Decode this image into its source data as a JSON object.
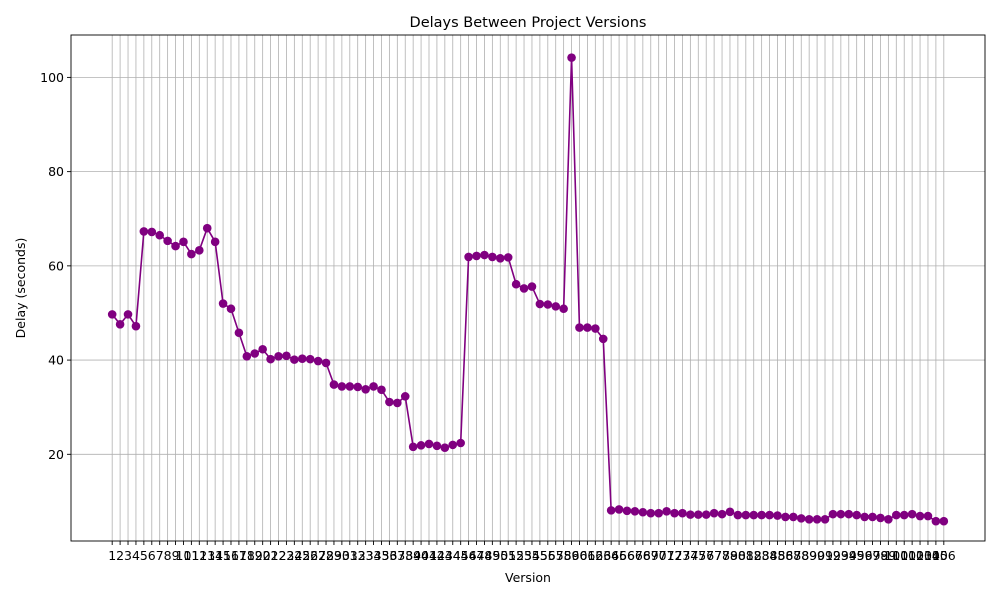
{
  "chart_data": {
    "type": "line",
    "title": "Delays Between Project Versions",
    "xlabel": "Version",
    "ylabel": "Delay (seconds)",
    "x": [
      1,
      2,
      3,
      4,
      5,
      6,
      7,
      8,
      9,
      10,
      11,
      12,
      13,
      14,
      15,
      16,
      17,
      18,
      19,
      20,
      21,
      22,
      23,
      24,
      25,
      26,
      27,
      28,
      29,
      30,
      31,
      32,
      33,
      34,
      35,
      36,
      37,
      38,
      39,
      40,
      41,
      42,
      43,
      44,
      45,
      46,
      47,
      48,
      49,
      50,
      51,
      52,
      53,
      54,
      55,
      56,
      57,
      58,
      59,
      60,
      61,
      62,
      63,
      64,
      65,
      66,
      67,
      68,
      69,
      70,
      71,
      72,
      73,
      74,
      75,
      76,
      77,
      78,
      79,
      80,
      81,
      82,
      83,
      84,
      85,
      86,
      87,
      88,
      89,
      90,
      91,
      92,
      93,
      94,
      95,
      96,
      97,
      98,
      99,
      100,
      101,
      102,
      103,
      104,
      105,
      106
    ],
    "series": [
      {
        "color": "#800080",
        "values": [
          49.7,
          47.6,
          49.7,
          47.2,
          67.3,
          67.2,
          66.5,
          65.3,
          64.2,
          65.1,
          62.5,
          63.3,
          68.0,
          65.1,
          52.0,
          50.9,
          45.8,
          40.8,
          41.4,
          42.3,
          40.2,
          40.8,
          40.9,
          40.1,
          40.3,
          40.2,
          39.8,
          39.4,
          34.8,
          34.4,
          34.4,
          34.3,
          33.8,
          34.4,
          33.7,
          31.1,
          30.9,
          32.3,
          21.6,
          21.9,
          22.2,
          21.8,
          21.4,
          22.0,
          22.4,
          61.9,
          62.1,
          62.3,
          61.9,
          61.6,
          61.8,
          56.1,
          55.2,
          55.6,
          51.9,
          51.8,
          51.4,
          50.9,
          104.2,
          46.9,
          46.9,
          46.7,
          44.5,
          8.1,
          8.3,
          8.0,
          7.9,
          7.7,
          7.5,
          7.5,
          7.9,
          7.5,
          7.5,
          7.2,
          7.2,
          7.2,
          7.5,
          7.3,
          7.8,
          7.1,
          7.1,
          7.1,
          7.1,
          7.1,
          7.0,
          6.7,
          6.7,
          6.4,
          6.2,
          6.2,
          6.2,
          7.3,
          7.3,
          7.3,
          7.1,
          6.7,
          6.7,
          6.5,
          6.2,
          7.1,
          7.1,
          7.3,
          6.9,
          6.9,
          5.8,
          5.8
        ]
      }
    ],
    "yticks": [
      20,
      40,
      60,
      80,
      100
    ],
    "ylim": [
      1.6,
      109.0
    ],
    "xlim": [
      -4.2,
      111.2
    ],
    "grid": true,
    "marker": "circle"
  }
}
